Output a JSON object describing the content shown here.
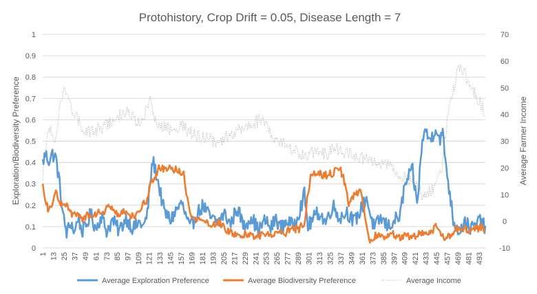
{
  "chart_data": {
    "type": "line",
    "title": "Protohistory, Crop Drift = 0.05, Disease Length = 7",
    "ylabel": "Exploration/Biodiversity Preference",
    "y2label": "Average Farmer Income",
    "ylim": [
      0,
      1
    ],
    "y2lim": [
      -10,
      70
    ],
    "y_ticks": [
      "0",
      "0.1",
      "0.2",
      "0.3",
      "0.4",
      "0.5",
      "0.6",
      "0.7",
      "0.8",
      "0.9",
      "1"
    ],
    "y2_ticks": [
      "-10",
      "0",
      "10",
      "20",
      "30",
      "40",
      "50",
      "60",
      "70"
    ],
    "x_range": [
      1,
      500
    ],
    "x_ticks": [
      "1",
      "13",
      "25",
      "37",
      "49",
      "61",
      "73",
      "85",
      "97",
      "109",
      "121",
      "133",
      "145",
      "157",
      "169",
      "181",
      "193",
      "205",
      "217",
      "229",
      "241",
      "253",
      "265",
      "277",
      "289",
      "301",
      "313",
      "325",
      "337",
      "349",
      "361",
      "373",
      "385",
      "397",
      "409",
      "421",
      "433",
      "445",
      "457",
      "469",
      "481",
      "493"
    ],
    "grid": "horizontal",
    "legend_position": "bottom",
    "series": [
      {
        "name": "Average Exploration Preferen‍ce",
        "axis": "left",
        "color": "#5b9bd5",
        "style": "solid",
        "anchors": [
          [
            1,
            0.4
          ],
          [
            4,
            0.44
          ],
          [
            8,
            0.41
          ],
          [
            12,
            0.44
          ],
          [
            16,
            0.42
          ],
          [
            20,
            0.3
          ],
          [
            24,
            0.15
          ],
          [
            28,
            0.07
          ],
          [
            33,
            0.12
          ],
          [
            37,
            0.07
          ],
          [
            41,
            0.15
          ],
          [
            45,
            0.08
          ],
          [
            49,
            0.09
          ],
          [
            55,
            0.16
          ],
          [
            61,
            0.09
          ],
          [
            67,
            0.15
          ],
          [
            73,
            0.08
          ],
          [
            80,
            0.13
          ],
          [
            87,
            0.08
          ],
          [
            95,
            0.14
          ],
          [
            103,
            0.09
          ],
          [
            110,
            0.12
          ],
          [
            115,
            0.1
          ],
          [
            119,
            0.16
          ],
          [
            122,
            0.3
          ],
          [
            125,
            0.41
          ],
          [
            129,
            0.35
          ],
          [
            133,
            0.27
          ],
          [
            138,
            0.17
          ],
          [
            145,
            0.13
          ],
          [
            152,
            0.18
          ],
          [
            158,
            0.21
          ],
          [
            162,
            0.15
          ],
          [
            167,
            0.09
          ],
          [
            175,
            0.16
          ],
          [
            182,
            0.2
          ],
          [
            190,
            0.14
          ],
          [
            198,
            0.12
          ],
          [
            206,
            0.16
          ],
          [
            213,
            0.11
          ],
          [
            220,
            0.19
          ],
          [
            228,
            0.1
          ],
          [
            236,
            0.15
          ],
          [
            244,
            0.08
          ],
          [
            252,
            0.13
          ],
          [
            258,
            0.09
          ],
          [
            264,
            0.14
          ],
          [
            270,
            0.09
          ],
          [
            276,
            0.13
          ],
          [
            283,
            0.1
          ],
          [
            290,
            0.17
          ],
          [
            296,
            0.25
          ],
          [
            300,
            0.1
          ],
          [
            305,
            0.13
          ],
          [
            312,
            0.17
          ],
          [
            320,
            0.12
          ],
          [
            328,
            0.2
          ],
          [
            336,
            0.14
          ],
          [
            344,
            0.17
          ],
          [
            352,
            0.12
          ],
          [
            360,
            0.18
          ],
          [
            366,
            0.24
          ],
          [
            370,
            0.16
          ],
          [
            375,
            0.09
          ],
          [
            382,
            0.14
          ],
          [
            390,
            0.1
          ],
          [
            398,
            0.13
          ],
          [
            404,
            0.15
          ],
          [
            408,
            0.27
          ],
          [
            413,
            0.33
          ],
          [
            418,
            0.36
          ],
          [
            423,
            0.2
          ],
          [
            428,
            0.45
          ],
          [
            431,
            0.56
          ],
          [
            436,
            0.51
          ],
          [
            440,
            0.52
          ],
          [
            444,
            0.57
          ],
          [
            448,
            0.51
          ],
          [
            452,
            0.53
          ],
          [
            456,
            0.38
          ],
          [
            460,
            0.25
          ],
          [
            464,
            0.13
          ],
          [
            470,
            0.08
          ],
          [
            477,
            0.12
          ],
          [
            484,
            0.09
          ],
          [
            490,
            0.11
          ],
          [
            496,
            0.14
          ],
          [
            500,
            0.07
          ]
        ],
        "jitter": 0.035
      },
      {
        "name": "Average Biodiversity Preference",
        "axis": "left",
        "color": "#ed7d31",
        "style": "solid",
        "anchors": [
          [
            1,
            0.3
          ],
          [
            4,
            0.21
          ],
          [
            8,
            0.18
          ],
          [
            12,
            0.2
          ],
          [
            16,
            0.27
          ],
          [
            20,
            0.22
          ],
          [
            24,
            0.2
          ],
          [
            29,
            0.19
          ],
          [
            34,
            0.15
          ],
          [
            40,
            0.16
          ],
          [
            46,
            0.13
          ],
          [
            52,
            0.16
          ],
          [
            58,
            0.14
          ],
          [
            64,
            0.18
          ],
          [
            70,
            0.16
          ],
          [
            76,
            0.2
          ],
          [
            80,
            0.17
          ],
          [
            86,
            0.15
          ],
          [
            94,
            0.17
          ],
          [
            102,
            0.15
          ],
          [
            109,
            0.16
          ],
          [
            114,
            0.2
          ],
          [
            119,
            0.23
          ],
          [
            123,
            0.31
          ],
          [
            128,
            0.33
          ],
          [
            133,
            0.38
          ],
          [
            138,
            0.37
          ],
          [
            143,
            0.38
          ],
          [
            148,
            0.37
          ],
          [
            154,
            0.36
          ],
          [
            160,
            0.35
          ],
          [
            163,
            0.25
          ],
          [
            168,
            0.14
          ],
          [
            176,
            0.13
          ],
          [
            184,
            0.12
          ],
          [
            192,
            0.11
          ],
          [
            200,
            0.12
          ],
          [
            206,
            0.09
          ],
          [
            214,
            0.07
          ],
          [
            222,
            0.05
          ],
          [
            230,
            0.07
          ],
          [
            240,
            0.05
          ],
          [
            250,
            0.06
          ],
          [
            258,
            0.06
          ],
          [
            266,
            0.08
          ],
          [
            274,
            0.07
          ],
          [
            282,
            0.09
          ],
          [
            290,
            0.09
          ],
          [
            296,
            0.12
          ],
          [
            300,
            0.26
          ],
          [
            304,
            0.35
          ],
          [
            312,
            0.35
          ],
          [
            320,
            0.34
          ],
          [
            328,
            0.35
          ],
          [
            336,
            0.37
          ],
          [
            340,
            0.33
          ],
          [
            346,
            0.21
          ],
          [
            352,
            0.25
          ],
          [
            358,
            0.27
          ],
          [
            362,
            0.22
          ],
          [
            366,
            0.1
          ],
          [
            370,
            0.04
          ],
          [
            378,
            0.06
          ],
          [
            386,
            0.05
          ],
          [
            394,
            0.07
          ],
          [
            402,
            0.05
          ],
          [
            410,
            0.06
          ],
          [
            418,
            0.05
          ],
          [
            426,
            0.07
          ],
          [
            434,
            0.06
          ],
          [
            442,
            0.09
          ],
          [
            446,
            0.11
          ],
          [
            450,
            0.07
          ],
          [
            456,
            0.04
          ],
          [
            460,
            0.06
          ],
          [
            466,
            0.09
          ],
          [
            472,
            0.08
          ],
          [
            478,
            0.09
          ],
          [
            484,
            0.08
          ],
          [
            490,
            0.09
          ],
          [
            496,
            0.1
          ],
          [
            500,
            0.09
          ]
        ],
        "jitter": 0.018
      },
      {
        "name": "Average Income",
        "axis": "right",
        "color": "#bfbfbf",
        "style": "dotted",
        "anchors": [
          [
            1,
            16
          ],
          [
            5,
            30
          ],
          [
            10,
            35
          ],
          [
            15,
            30
          ],
          [
            20,
            42
          ],
          [
            25,
            50
          ],
          [
            30,
            44
          ],
          [
            38,
            40
          ],
          [
            48,
            33
          ],
          [
            58,
            34
          ],
          [
            68,
            35
          ],
          [
            78,
            37
          ],
          [
            90,
            40
          ],
          [
            100,
            41
          ],
          [
            110,
            36
          ],
          [
            118,
            42
          ],
          [
            122,
            45
          ],
          [
            128,
            38
          ],
          [
            135,
            36
          ],
          [
            145,
            34
          ],
          [
            155,
            36
          ],
          [
            165,
            34
          ],
          [
            175,
            32
          ],
          [
            185,
            31
          ],
          [
            195,
            30
          ],
          [
            205,
            31
          ],
          [
            215,
            33
          ],
          [
            225,
            35
          ],
          [
            235,
            36
          ],
          [
            245,
            38
          ],
          [
            252,
            37
          ],
          [
            260,
            32
          ],
          [
            270,
            30
          ],
          [
            280,
            27
          ],
          [
            290,
            26
          ],
          [
            300,
            24
          ],
          [
            310,
            27
          ],
          [
            320,
            25
          ],
          [
            330,
            27
          ],
          [
            340,
            26
          ],
          [
            350,
            25
          ],
          [
            360,
            24
          ],
          [
            370,
            23
          ],
          [
            380,
            22
          ],
          [
            390,
            21
          ],
          [
            400,
            18
          ],
          [
            410,
            16
          ],
          [
            420,
            14
          ],
          [
            430,
            10
          ],
          [
            440,
            12
          ],
          [
            450,
            18
          ],
          [
            456,
            35
          ],
          [
            460,
            45
          ],
          [
            465,
            50
          ],
          [
            470,
            58
          ],
          [
            475,
            56
          ],
          [
            480,
            53
          ],
          [
            488,
            48
          ],
          [
            495,
            44
          ],
          [
            500,
            40
          ]
        ],
        "jitter": 2.5
      }
    ]
  }
}
